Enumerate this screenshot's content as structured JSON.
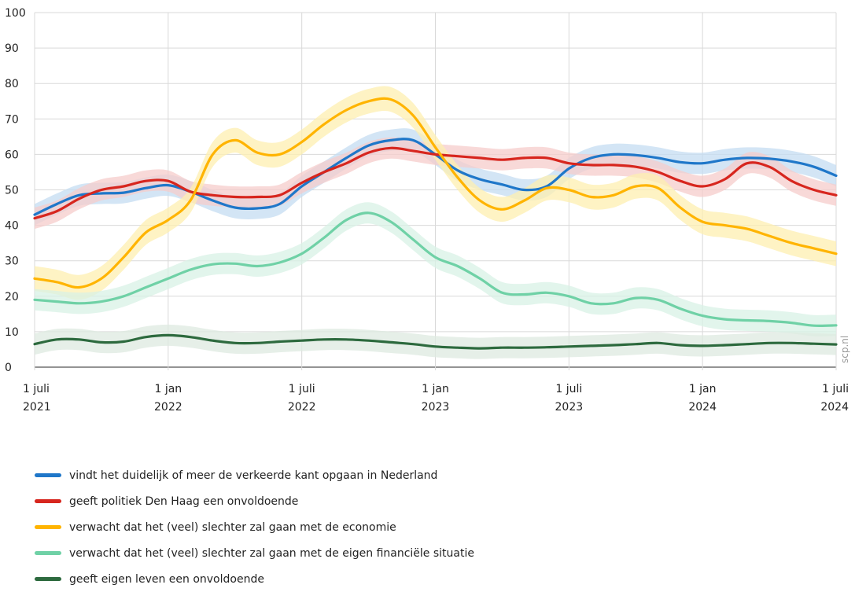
{
  "chart_data": {
    "type": "line",
    "ylim": [
      0,
      100
    ],
    "yticks": [
      "0",
      "10",
      "20",
      "30",
      "40",
      "50",
      "60",
      "70",
      "80",
      "90",
      "100"
    ],
    "grid": true,
    "legend_position": "bottom",
    "watermark": "scp.nl",
    "x_labels": [
      {
        "x": 0,
        "line1": "1 juli",
        "line2": "2021"
      },
      {
        "x": 6,
        "line1": "1 jan",
        "line2": "2022"
      },
      {
        "x": 12,
        "line1": "1 juli",
        "line2": "2022"
      },
      {
        "x": 18,
        "line1": "1 jan",
        "line2": "2023"
      },
      {
        "x": 24,
        "line1": "1 juli",
        "line2": "2023"
      },
      {
        "x": 30,
        "line1": "1 jan",
        "line2": "2024"
      },
      {
        "x": 36,
        "line1": "1 juli",
        "line2": "2024"
      }
    ],
    "xlim": [
      0,
      36
    ],
    "series": [
      {
        "name": "vindt het duidelijk of meer de verkeerde kant opgaan in Nederland",
        "color": "#1f77c9",
        "band_color": "#c4dcf2",
        "band_halfwidth": 3,
        "points": [
          [
            0,
            43
          ],
          [
            1,
            46
          ],
          [
            2,
            48.5
          ],
          [
            3,
            49
          ],
          [
            4,
            49.2
          ],
          [
            5,
            50.5
          ],
          [
            6,
            51.3
          ],
          [
            7,
            49.5
          ],
          [
            8,
            47
          ],
          [
            9,
            45
          ],
          [
            10,
            44.8
          ],
          [
            11,
            46
          ],
          [
            12,
            51
          ],
          [
            13,
            55
          ],
          [
            14,
            59
          ],
          [
            15,
            62.5
          ],
          [
            16,
            64
          ],
          [
            17,
            64
          ],
          [
            18,
            60
          ],
          [
            19,
            55.5
          ],
          [
            20,
            53
          ],
          [
            21,
            51.5
          ],
          [
            22,
            50
          ],
          [
            23,
            51
          ],
          [
            24,
            56
          ],
          [
            25,
            59
          ],
          [
            26,
            60
          ],
          [
            27,
            59.8
          ],
          [
            28,
            59
          ],
          [
            29,
            57.8
          ],
          [
            30,
            57.5
          ],
          [
            31,
            58.5
          ],
          [
            32,
            59
          ],
          [
            33,
            58.8
          ],
          [
            34,
            58
          ],
          [
            35,
            56.5
          ],
          [
            36,
            54
          ]
        ]
      },
      {
        "name": "geeft politiek Den Haag een onvoldoende",
        "color": "#d7261e",
        "band_color": "#f6cccb",
        "band_halfwidth": 3,
        "points": [
          [
            0,
            42
          ],
          [
            1,
            44
          ],
          [
            2,
            47.5
          ],
          [
            3,
            50
          ],
          [
            4,
            51
          ],
          [
            5,
            52.5
          ],
          [
            6,
            52.5
          ],
          [
            7,
            49.5
          ],
          [
            8,
            48.5
          ],
          [
            9,
            48
          ],
          [
            10,
            48
          ],
          [
            11,
            48.5
          ],
          [
            12,
            52
          ],
          [
            13,
            55
          ],
          [
            14,
            57.5
          ],
          [
            15,
            60.5
          ],
          [
            16,
            61.8
          ],
          [
            17,
            61
          ],
          [
            18,
            60
          ],
          [
            19,
            59.5
          ],
          [
            20,
            59
          ],
          [
            21,
            58.5
          ],
          [
            22,
            59
          ],
          [
            23,
            59
          ],
          [
            24,
            57.5
          ],
          [
            25,
            57
          ],
          [
            26,
            57
          ],
          [
            27,
            56.5
          ],
          [
            28,
            55
          ],
          [
            29,
            52.5
          ],
          [
            30,
            51
          ],
          [
            31,
            53
          ],
          [
            32,
            57.5
          ],
          [
            33,
            56.5
          ],
          [
            34,
            52.5
          ],
          [
            35,
            50
          ],
          [
            36,
            48.5
          ]
        ]
      },
      {
        "name": "verwacht dat het (veel) slechter zal gaan met de economie",
        "color": "#ffb400",
        "band_color": "#fdefb0",
        "band_halfwidth": 3.5,
        "points": [
          [
            0,
            25
          ],
          [
            1,
            24
          ],
          [
            2,
            22.5
          ],
          [
            3,
            25
          ],
          [
            4,
            31
          ],
          [
            5,
            38
          ],
          [
            6,
            41.5
          ],
          [
            7,
            47
          ],
          [
            8,
            60
          ],
          [
            9,
            64
          ],
          [
            10,
            60.5
          ],
          [
            11,
            60
          ],
          [
            12,
            63.5
          ],
          [
            13,
            68.5
          ],
          [
            14,
            72.5
          ],
          [
            15,
            75
          ],
          [
            16,
            75.5
          ],
          [
            17,
            71
          ],
          [
            18,
            62
          ],
          [
            19,
            53.5
          ],
          [
            20,
            47
          ],
          [
            21,
            44.5
          ],
          [
            22,
            47
          ],
          [
            23,
            50.5
          ],
          [
            24,
            50
          ],
          [
            25,
            48
          ],
          [
            26,
            48.5
          ],
          [
            27,
            51
          ],
          [
            28,
            50.5
          ],
          [
            29,
            45
          ],
          [
            30,
            41
          ],
          [
            31,
            40
          ],
          [
            32,
            39
          ],
          [
            33,
            37
          ],
          [
            34,
            35
          ],
          [
            35,
            33.5
          ],
          [
            36,
            32
          ]
        ]
      },
      {
        "name": "verwacht dat het (veel) slechter zal gaan met de eigen financiële situatie",
        "color": "#6fd1a6",
        "band_color": "#d8f2e6",
        "band_halfwidth": 3,
        "points": [
          [
            0,
            19
          ],
          [
            1,
            18.5
          ],
          [
            2,
            18
          ],
          [
            3,
            18.5
          ],
          [
            4,
            20
          ],
          [
            5,
            22.5
          ],
          [
            6,
            25
          ],
          [
            7,
            27.5
          ],
          [
            8,
            29
          ],
          [
            9,
            29.2
          ],
          [
            10,
            28.5
          ],
          [
            11,
            29.5
          ],
          [
            12,
            32
          ],
          [
            13,
            36.5
          ],
          [
            14,
            41.5
          ],
          [
            15,
            43.5
          ],
          [
            16,
            41
          ],
          [
            17,
            36
          ],
          [
            18,
            31
          ],
          [
            19,
            28.5
          ],
          [
            20,
            25
          ],
          [
            21,
            21
          ],
          [
            22,
            20.5
          ],
          [
            23,
            21
          ],
          [
            24,
            20
          ],
          [
            25,
            18
          ],
          [
            26,
            18
          ],
          [
            27,
            19.5
          ],
          [
            28,
            19
          ],
          [
            29,
            16.5
          ],
          [
            30,
            14.5
          ],
          [
            31,
            13.5
          ],
          [
            32,
            13.2
          ],
          [
            33,
            13
          ],
          [
            34,
            12.5
          ],
          [
            35,
            11.7
          ],
          [
            36,
            11.8
          ]
        ]
      },
      {
        "name": "geeft eigen leven een onvoldoende",
        "color": "#2d6a3e",
        "band_color": "#dde9e0",
        "band_halfwidth": 3,
        "points": [
          [
            0,
            6.5
          ],
          [
            1,
            7.8
          ],
          [
            2,
            7.8
          ],
          [
            3,
            7
          ],
          [
            4,
            7.2
          ],
          [
            5,
            8.5
          ],
          [
            6,
            9
          ],
          [
            7,
            8.5
          ],
          [
            8,
            7.5
          ],
          [
            9,
            6.8
          ],
          [
            10,
            6.8
          ],
          [
            11,
            7.2
          ],
          [
            12,
            7.5
          ],
          [
            13,
            7.8
          ],
          [
            14,
            7.8
          ],
          [
            15,
            7.5
          ],
          [
            16,
            7
          ],
          [
            17,
            6.5
          ],
          [
            18,
            5.8
          ],
          [
            19,
            5.5
          ],
          [
            20,
            5.3
          ],
          [
            21,
            5.5
          ],
          [
            22,
            5.5
          ],
          [
            23,
            5.6
          ],
          [
            24,
            5.8
          ],
          [
            25,
            6
          ],
          [
            26,
            6.2
          ],
          [
            27,
            6.5
          ],
          [
            28,
            6.8
          ],
          [
            29,
            6.2
          ],
          [
            30,
            6
          ],
          [
            31,
            6.2
          ],
          [
            32,
            6.5
          ],
          [
            33,
            6.8
          ],
          [
            34,
            6.8
          ],
          [
            35,
            6.6
          ],
          [
            36,
            6.4
          ]
        ]
      }
    ]
  }
}
